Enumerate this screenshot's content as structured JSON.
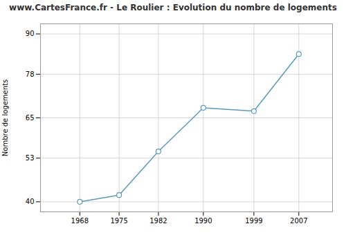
{
  "chart_data": {
    "type": "line",
    "title": "www.CartesFrance.fr - Le Roulier : Evolution du nombre de logements",
    "ylabel": "Nombre de logements",
    "x": [
      1968,
      1975,
      1982,
      1990,
      1999,
      2007
    ],
    "values": [
      40,
      42,
      55,
      68,
      67,
      84
    ],
    "color": "#5b9abd",
    "marker": "circle",
    "xlim": [
      1961,
      2013
    ],
    "ylim": [
      37,
      93
    ],
    "xticks": [
      1968,
      1975,
      1982,
      1990,
      1999,
      2007
    ],
    "yticks": [
      40,
      53,
      65,
      78,
      90
    ],
    "grid": true
  }
}
